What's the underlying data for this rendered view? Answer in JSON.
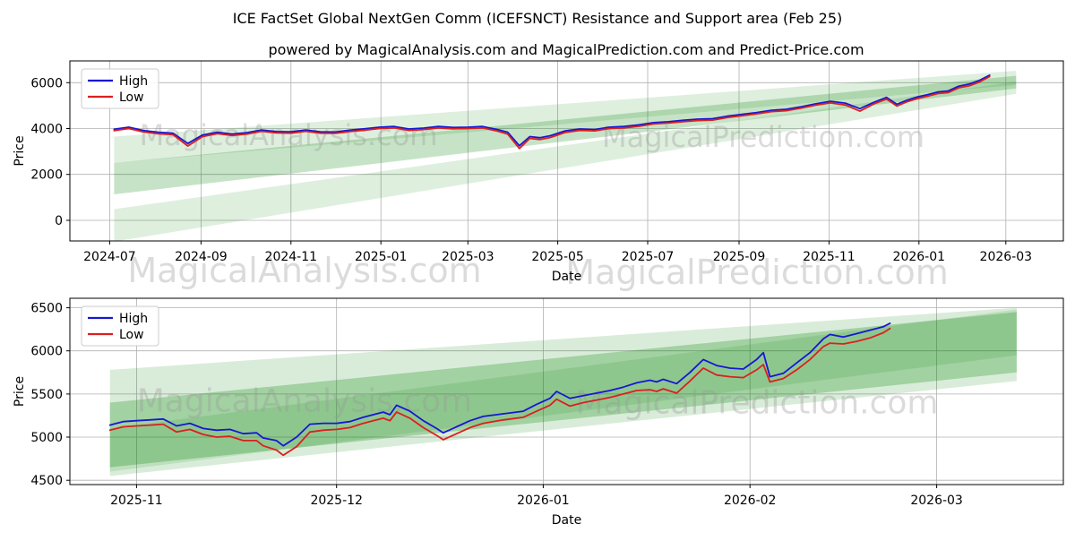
{
  "figure": {
    "title": "ICE FactSet Global NextGen Comm (ICEFSNCT) Resistance and Support area (Feb 25)",
    "subtitle": "powered by MagicalAnalysis.com and MagicalPrediction.com and Predict-Price.com",
    "watermarks": [
      "MagicalAnalysis.com",
      "MagicalPrediction.com"
    ],
    "band_color": "#008000",
    "grid_color": "#b0b0b0",
    "spine_color": "#000000",
    "text_color": "#000000",
    "watermark_color": "#999999",
    "high_color": "#1717d2",
    "low_color": "#dc1f1f"
  },
  "chart_data": [
    {
      "name": "top-chart",
      "type": "line",
      "xlabel": "Date",
      "ylabel": "Price",
      "xlim": [
        "2024-06-04",
        "2026-04-09"
      ],
      "ylim": [
        -900,
        6950
      ],
      "grid": true,
      "legend_position": "upper-left",
      "legend": [
        {
          "label": "High",
          "color": "#1717d2"
        },
        {
          "label": "Low",
          "color": "#dc1f1f"
        }
      ],
      "xticks": [
        {
          "label": "2024-07",
          "date": "2024-07-01"
        },
        {
          "label": "2024-09",
          "date": "2024-09-01"
        },
        {
          "label": "2024-11",
          "date": "2024-11-01"
        },
        {
          "label": "2025-01",
          "date": "2025-01-01"
        },
        {
          "label": "2025-03",
          "date": "2025-03-01"
        },
        {
          "label": "2025-05",
          "date": "2025-05-01"
        },
        {
          "label": "2025-07",
          "date": "2025-07-01"
        },
        {
          "label": "2025-09",
          "date": "2025-09-01"
        },
        {
          "label": "2025-11",
          "date": "2025-11-01"
        },
        {
          "label": "2026-01",
          "date": "2026-01-01"
        },
        {
          "label": "2026-03",
          "date": "2026-03-01"
        }
      ],
      "yticks": [
        0,
        2000,
        4000,
        6000
      ],
      "dates": [
        "2024-07-04",
        "2024-07-14",
        "2024-07-24",
        "2024-08-03",
        "2024-08-13",
        "2024-08-23",
        "2024-09-02",
        "2024-09-12",
        "2024-09-22",
        "2024-10-02",
        "2024-10-12",
        "2024-10-22",
        "2024-11-01",
        "2024-11-11",
        "2024-11-21",
        "2024-12-01",
        "2024-12-11",
        "2024-12-21",
        "2024-12-31",
        "2025-01-10",
        "2025-01-20",
        "2025-01-30",
        "2025-02-09",
        "2025-02-19",
        "2025-03-01",
        "2025-03-11",
        "2025-03-21",
        "2025-03-28",
        "2025-04-05",
        "2025-04-12",
        "2025-04-19",
        "2025-04-26",
        "2025-05-06",
        "2025-05-16",
        "2025-05-26",
        "2025-06-05",
        "2025-06-15",
        "2025-06-25",
        "2025-07-05",
        "2025-07-15",
        "2025-07-25",
        "2025-08-04",
        "2025-08-14",
        "2025-08-24",
        "2025-09-03",
        "2025-09-13",
        "2025-09-23",
        "2025-10-03",
        "2025-10-13",
        "2025-10-23",
        "2025-11-02",
        "2025-11-12",
        "2025-11-22",
        "2025-12-02",
        "2025-12-10",
        "2025-12-17",
        "2025-12-24",
        "2025-12-31",
        "2026-01-07",
        "2026-01-14",
        "2026-01-21",
        "2026-01-28",
        "2026-02-04",
        "2026-02-11",
        "2026-02-18"
      ],
      "series": [
        {
          "name": "High",
          "color": "#1717d2",
          "values": [
            3970,
            4060,
            3910,
            3840,
            3800,
            3350,
            3720,
            3840,
            3760,
            3820,
            3940,
            3870,
            3860,
            3940,
            3860,
            3850,
            3930,
            3990,
            4060,
            4090,
            3980,
            4020,
            4090,
            4050,
            4060,
            4090,
            3960,
            3840,
            3250,
            3650,
            3600,
            3690,
            3900,
            3980,
            3960,
            4060,
            4090,
            4160,
            4260,
            4300,
            4360,
            4410,
            4430,
            4540,
            4620,
            4700,
            4800,
            4840,
            4950,
            5080,
            5190,
            5110,
            4870,
            5160,
            5360,
            5060,
            5240,
            5380,
            5480,
            5600,
            5640,
            5850,
            5940,
            6100,
            6330
          ]
        },
        {
          "name": "Low",
          "color": "#dc1f1f",
          "values": [
            3910,
            4000,
            3850,
            3770,
            3730,
            3240,
            3650,
            3780,
            3700,
            3760,
            3880,
            3810,
            3800,
            3880,
            3800,
            3790,
            3870,
            3930,
            4000,
            4030,
            3920,
            3960,
            4030,
            3990,
            4000,
            4030,
            3890,
            3760,
            3130,
            3570,
            3520,
            3610,
            3830,
            3920,
            3900,
            4000,
            4030,
            4100,
            4200,
            4240,
            4300,
            4350,
            4370,
            4480,
            4560,
            4640,
            4740,
            4780,
            4890,
            5020,
            5120,
            5030,
            4760,
            5090,
            5290,
            4980,
            5170,
            5310,
            5410,
            5530,
            5570,
            5780,
            5860,
            6030,
            6270
          ]
        }
      ],
      "bands": [
        {
          "x": [
            "2024-07-04",
            "2026-03-08"
          ],
          "top": [
            3650,
            6520
          ],
          "bottom": [
            2500,
            5900
          ],
          "opacity": 0.13
        },
        {
          "x": [
            "2024-07-04",
            "2026-03-08"
          ],
          "top": [
            2500,
            6300
          ],
          "bottom": [
            1130,
            5750
          ],
          "opacity": 0.22
        },
        {
          "x": [
            "2024-07-04",
            "2026-03-08"
          ],
          "top": [
            485,
            6050
          ],
          "bottom": [
            -930,
            5515
          ],
          "opacity": 0.13
        }
      ]
    },
    {
      "name": "bottom-chart",
      "type": "line",
      "xlabel": "Date",
      "ylabel": "Price",
      "xlim": [
        "2025-10-22",
        "2026-03-20"
      ],
      "ylim": [
        4450,
        6610
      ],
      "grid": true,
      "legend_position": "upper-left",
      "legend": [
        {
          "label": "High",
          "color": "#1717d2"
        },
        {
          "label": "Low",
          "color": "#dc1f1f"
        }
      ],
      "xticks": [
        {
          "label": "2025-11",
          "date": "2025-11-01"
        },
        {
          "label": "2025-12",
          "date": "2025-12-01"
        },
        {
          "label": "2026-01",
          "date": "2026-01-01"
        },
        {
          "label": "2026-02",
          "date": "2026-02-01"
        },
        {
          "label": "2026-03",
          "date": "2026-03-01"
        }
      ],
      "yticks": [
        4500,
        5000,
        5500,
        6000,
        6500
      ],
      "dates": [
        "2025-10-28",
        "2025-10-30",
        "2025-11-01",
        "2025-11-03",
        "2025-11-05",
        "2025-11-07",
        "2025-11-09",
        "2025-11-11",
        "2025-11-13",
        "2025-11-15",
        "2025-11-17",
        "2025-11-19",
        "2025-11-20",
        "2025-11-22",
        "2025-11-23",
        "2025-11-25",
        "2025-11-27",
        "2025-11-29",
        "2025-12-01",
        "2025-12-03",
        "2025-12-05",
        "2025-12-07",
        "2025-12-08",
        "2025-12-09",
        "2025-12-10",
        "2025-12-12",
        "2025-12-14",
        "2025-12-16",
        "2025-12-17",
        "2025-12-19",
        "2025-12-21",
        "2025-12-23",
        "2025-12-26",
        "2025-12-29",
        "2025-12-31",
        "2026-01-02",
        "2026-01-03",
        "2026-01-05",
        "2026-01-07",
        "2026-01-09",
        "2026-01-11",
        "2026-01-13",
        "2026-01-15",
        "2026-01-17",
        "2026-01-18",
        "2026-01-19",
        "2026-01-21",
        "2026-01-23",
        "2026-01-25",
        "2026-01-27",
        "2026-01-29",
        "2026-01-31",
        "2026-02-02",
        "2026-02-03",
        "2026-02-04",
        "2026-02-06",
        "2026-02-08",
        "2026-02-10",
        "2026-02-12",
        "2026-02-13",
        "2026-02-15",
        "2026-02-17",
        "2026-02-19",
        "2026-02-21",
        "2026-02-22"
      ],
      "series": [
        {
          "name": "High",
          "color": "#1717d2",
          "values": [
            5140,
            5180,
            5190,
            5200,
            5210,
            5130,
            5160,
            5100,
            5080,
            5090,
            5040,
            5050,
            4990,
            4960,
            4900,
            5000,
            5150,
            5160,
            5160,
            5180,
            5230,
            5270,
            5290,
            5260,
            5370,
            5300,
            5190,
            5100,
            5050,
            5120,
            5190,
            5240,
            5270,
            5300,
            5380,
            5450,
            5530,
            5450,
            5480,
            5510,
            5540,
            5580,
            5630,
            5660,
            5640,
            5670,
            5620,
            5750,
            5900,
            5830,
            5800,
            5790,
            5900,
            5980,
            5700,
            5740,
            5860,
            5980,
            6140,
            6190,
            6160,
            6200,
            6240,
            6280,
            6320
          ]
        },
        {
          "name": "Low",
          "color": "#dc1f1f",
          "values": [
            5080,
            5120,
            5130,
            5140,
            5150,
            5060,
            5090,
            5030,
            5000,
            5010,
            4960,
            4960,
            4900,
            4850,
            4790,
            4890,
            5060,
            5080,
            5090,
            5110,
            5160,
            5200,
            5220,
            5190,
            5290,
            5220,
            5110,
            5020,
            4970,
            5040,
            5110,
            5160,
            5200,
            5230,
            5300,
            5370,
            5440,
            5360,
            5400,
            5430,
            5460,
            5500,
            5540,
            5550,
            5530,
            5560,
            5510,
            5650,
            5800,
            5720,
            5700,
            5690,
            5780,
            5840,
            5640,
            5680,
            5780,
            5900,
            6050,
            6090,
            6080,
            6110,
            6150,
            6210,
            6260
          ]
        }
      ],
      "bands": [
        {
          "x": [
            "2025-10-28",
            "2026-03-13"
          ],
          "top": [
            5780,
            6500
          ],
          "bottom": [
            4550,
            5650
          ],
          "opacity": 0.15
        },
        {
          "x": [
            "2025-10-28",
            "2026-03-13"
          ],
          "top": [
            5400,
            6450
          ],
          "bottom": [
            4650,
            5750
          ],
          "opacity": 0.25
        },
        {
          "x": [
            "2025-10-28",
            "2026-03-13"
          ],
          "top": [
            5100,
            6480
          ],
          "bottom": [
            4600,
            5950
          ],
          "opacity": 0.12
        }
      ]
    }
  ]
}
